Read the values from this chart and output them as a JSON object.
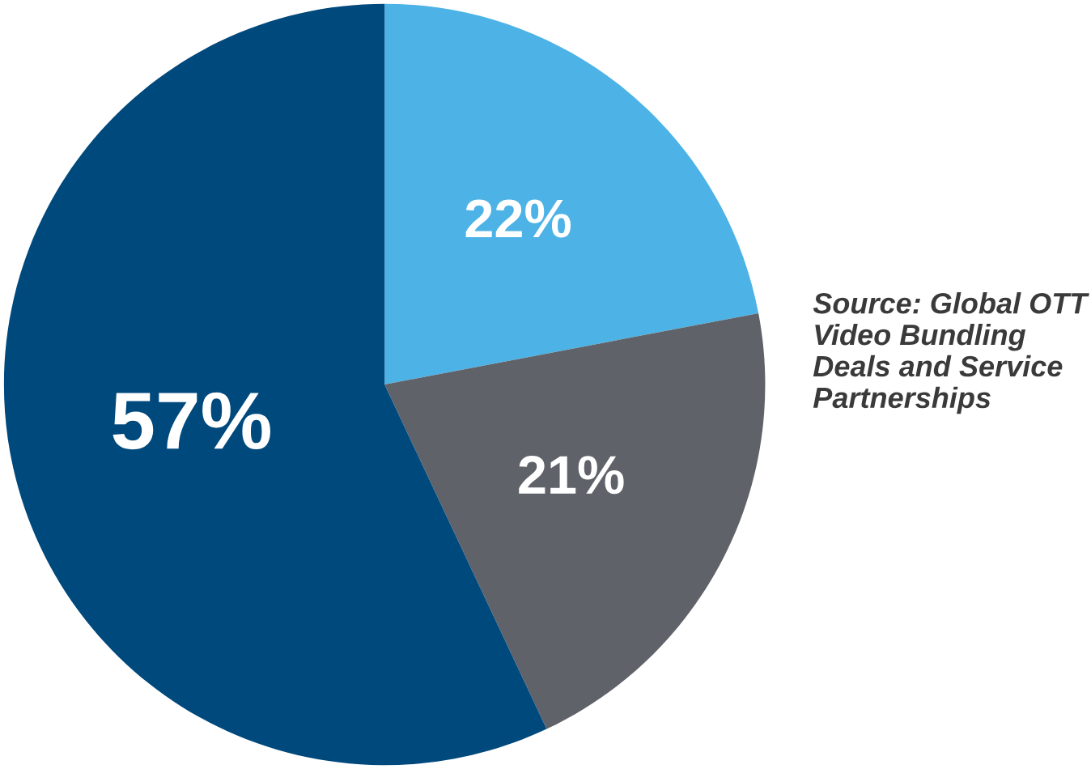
{
  "chart_data": {
    "type": "pie",
    "categories": [
      null,
      null,
      null
    ],
    "values": [
      22,
      21,
      57
    ],
    "colors": [
      "#4db3e6",
      "#5f6369",
      "#00497d"
    ],
    "value_labels": [
      "22%",
      "21%",
      "57%"
    ],
    "annotations": [
      "Source: Global OTT Video Bundling Deals and Service Partnerships"
    ]
  }
}
